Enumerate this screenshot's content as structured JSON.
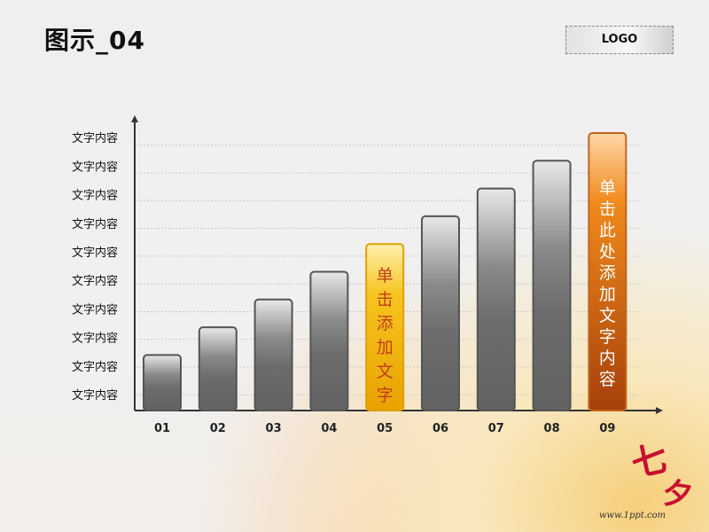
{
  "page": {
    "title": "图示_04",
    "logo": "LOGO",
    "url": "www.1ppt.com",
    "deco_text_1": "七",
    "deco_text_2": "夕"
  },
  "colors": {
    "bar_gray": "#6f6f6f",
    "bar_yellow": "#f5b400",
    "bar_orange": "#c45a10",
    "axis": "#333333"
  },
  "chart_data": {
    "type": "bar",
    "title": "",
    "xlabel": "",
    "ylabel": "",
    "categories": [
      "01",
      "02",
      "03",
      "04",
      "05",
      "06",
      "07",
      "08",
      "09"
    ],
    "values": [
      2,
      3,
      4,
      5,
      6,
      7,
      8,
      9,
      10
    ],
    "ylim": [
      0,
      10
    ],
    "y_tick_labels": [
      "文字内容",
      "文字内容",
      "文字内容",
      "文字内容",
      "文字内容",
      "文字内容",
      "文字内容",
      "文字内容",
      "文字内容",
      "文字内容"
    ],
    "highlight": [
      {
        "category": "05",
        "style": "yellow",
        "text": "单击添加文字"
      },
      {
        "category": "09",
        "style": "orange",
        "text": "单击此处添加文字内容"
      }
    ],
    "grid": true,
    "legend": "none"
  }
}
